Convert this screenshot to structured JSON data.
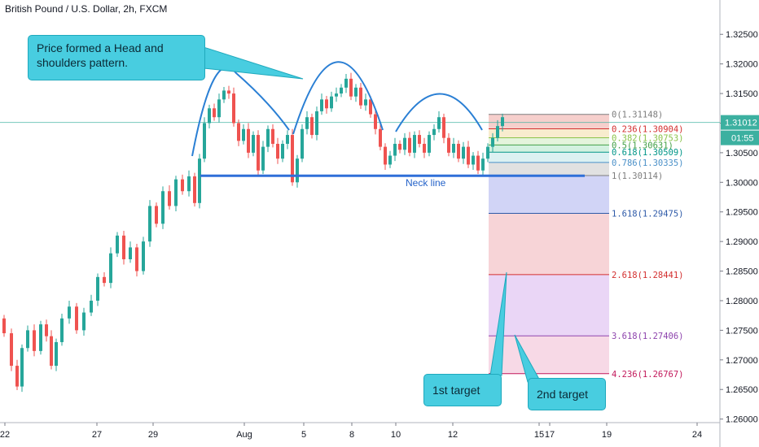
{
  "header": {
    "title": "British Pound / U.S. Dollar, 2h, FXCM"
  },
  "price_axis": {
    "current_price": "1.31012",
    "countdown": "01:55"
  },
  "annotations": {
    "hs_callout": "Price formed a Head and shoulders pattern.",
    "neck_line": "Neck line",
    "target1": "1st target",
    "target2": "2nd target"
  },
  "colors": {
    "bull_candle": "#26a69a",
    "bear_candle": "#ef5350",
    "arc": "#2a7fd4",
    "neck_line": "#2f6fd8",
    "callout_bg": "#48cde0",
    "price_line": "#3cb0a0"
  },
  "chart_data": {
    "type": "candlestick",
    "title": "British Pound / U.S. Dollar, 2h, FXCM",
    "y_range": [
      1.2594,
      1.3308
    ],
    "y_ticks": [
      "1.32500",
      "1.32000",
      "1.31500",
      "1.31000",
      "1.30500",
      "1.30000",
      "1.29500",
      "1.29000",
      "1.28500",
      "1.28000",
      "1.27500",
      "1.27000",
      "1.26500",
      "1.26000"
    ],
    "x_ticks": [
      "22",
      "27",
      "29",
      "Aug",
      "5",
      "8",
      "10",
      "12",
      "15",
      "17",
      "19",
      "24"
    ],
    "fibonacci": [
      {
        "level": "0",
        "price": "1.31148",
        "color": "#7d7d7d"
      },
      {
        "level": "0.236",
        "price": "1.30904",
        "color": "#d32f2f"
      },
      {
        "level": "0.382",
        "price": "1.30753",
        "color": "#8bc34a"
      },
      {
        "level": "0.5",
        "price": "1.30631",
        "color": "#43a047"
      },
      {
        "level": "0.618",
        "price": "1.30509",
        "color": "#009688"
      },
      {
        "level": "0.786",
        "price": "1.30335",
        "color": "#4a90c8"
      },
      {
        "level": "1",
        "price": "1.30114",
        "color": "#7d7d7d"
      },
      {
        "level": "1.618",
        "price": "1.29475",
        "color": "#2e5aa8"
      },
      {
        "level": "2.618",
        "price": "1.28441",
        "color": "#d32f2f"
      },
      {
        "level": "3.618",
        "price": "1.27406",
        "color": "#8e44ad"
      },
      {
        "level": "4.236",
        "price": "1.26767",
        "color": "#c2185b"
      }
    ],
    "neckline_price": 1.3011,
    "current_price": 1.31012,
    "price_path": [
      [
        0,
        1.277
      ],
      [
        10,
        1.2745
      ],
      [
        18,
        1.269
      ],
      [
        24,
        1.2655
      ],
      [
        30,
        1.272
      ],
      [
        38,
        1.275
      ],
      [
        46,
        1.2715
      ],
      [
        54,
        1.276
      ],
      [
        60,
        1.274
      ],
      [
        66,
        1.269
      ],
      [
        72,
        1.273
      ],
      [
        80,
        1.277
      ],
      [
        90,
        1.279
      ],
      [
        98,
        1.275
      ],
      [
        108,
        1.278
      ],
      [
        116,
        1.28
      ],
      [
        124,
        1.284
      ],
      [
        132,
        1.283
      ],
      [
        140,
        1.288
      ],
      [
        148,
        1.291
      ],
      [
        156,
        1.287
      ],
      [
        164,
        1.289
      ],
      [
        172,
        1.285
      ],
      [
        180,
        1.29
      ],
      [
        188,
        1.296
      ],
      [
        196,
        1.293
      ],
      [
        204,
        1.2985
      ],
      [
        212,
        1.296
      ],
      [
        220,
        1.3005
      ],
      [
        228,
        1.2985
      ],
      [
        236,
        1.301
      ],
      [
        242,
        1.2965
      ],
      [
        248,
        1.304
      ],
      [
        254,
        1.31
      ],
      [
        260,
        1.3125
      ],
      [
        266,
        1.311
      ],
      [
        272,
        1.314
      ],
      [
        278,
        1.3155
      ],
      [
        284,
        1.315
      ],
      [
        290,
        1.31
      ],
      [
        296,
        1.307
      ],
      [
        302,
        1.309
      ],
      [
        308,
        1.305
      ],
      [
        314,
        1.308
      ],
      [
        320,
        1.302
      ],
      [
        326,
        1.306
      ],
      [
        332,
        1.309
      ],
      [
        338,
        1.3065
      ],
      [
        344,
        1.304
      ],
      [
        350,
        1.3065
      ],
      [
        356,
        1.308
      ],
      [
        362,
        1.3
      ],
      [
        368,
        1.304
      ],
      [
        374,
        1.309
      ],
      [
        380,
        1.311
      ],
      [
        386,
        1.308
      ],
      [
        392,
        1.312
      ],
      [
        398,
        1.314
      ],
      [
        404,
        1.3125
      ],
      [
        410,
        1.3145
      ],
      [
        416,
        1.315
      ],
      [
        422,
        1.316
      ],
      [
        428,
        1.3175
      ],
      [
        434,
        1.3145
      ],
      [
        440,
        1.316
      ],
      [
        446,
        1.313
      ],
      [
        452,
        1.314
      ],
      [
        458,
        1.3115
      ],
      [
        464,
        1.309
      ],
      [
        470,
        1.306
      ],
      [
        476,
        1.303
      ],
      [
        482,
        1.3045
      ],
      [
        488,
        1.3065
      ],
      [
        494,
        1.3055
      ],
      [
        500,
        1.3075
      ],
      [
        506,
        1.305
      ],
      [
        512,
        1.308
      ],
      [
        518,
        1.3065
      ],
      [
        524,
        1.305
      ],
      [
        530,
        1.308
      ],
      [
        536,
        1.309
      ],
      [
        542,
        1.311
      ],
      [
        548,
        1.3075
      ],
      [
        554,
        1.305
      ],
      [
        560,
        1.3065
      ],
      [
        566,
        1.304
      ],
      [
        572,
        1.306
      ],
      [
        578,
        1.303
      ],
      [
        584,
        1.3045
      ],
      [
        590,
        1.302
      ],
      [
        596,
        1.304
      ],
      [
        602,
        1.306
      ],
      [
        608,
        1.3075
      ],
      [
        614,
        1.3095
      ],
      [
        620,
        1.311
      ]
    ]
  }
}
